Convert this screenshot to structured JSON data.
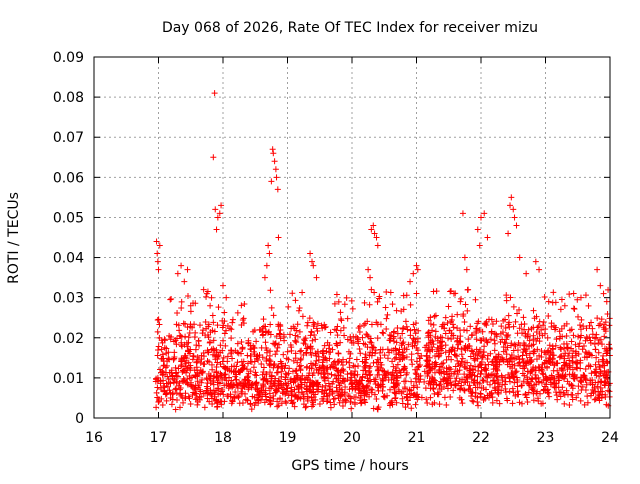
{
  "chart_data": {
    "type": "scatter",
    "title": "Day 068 of 2026, Rate Of TEC Index for receiver mizu",
    "xlabel": "GPS time / hours",
    "ylabel": "ROTI / TECUs",
    "xlim": [
      16,
      24
    ],
    "ylim": [
      0,
      0.09
    ],
    "x_ticks": [
      16,
      17,
      18,
      19,
      20,
      21,
      22,
      23,
      24
    ],
    "y_ticks": [
      0,
      0.01,
      0.02,
      0.03,
      0.04,
      0.05,
      0.06,
      0.07,
      0.08,
      0.09
    ],
    "x_tick_labels": [
      "16",
      "17",
      "18",
      "19",
      "20",
      "21",
      "22",
      "23",
      "24"
    ],
    "y_tick_labels": [
      "0",
      "0.01",
      "0.02",
      "0.03",
      "0.04",
      "0.05",
      "0.06",
      "0.07",
      "0.08",
      "0.09"
    ],
    "grid": true,
    "marker": "+",
    "marker_color": "#ff0000",
    "data_range_hours": [
      16.95,
      24.0
    ],
    "series": [
      {
        "name": "ROTI",
        "points": [
          [
            16.97,
            0.044
          ],
          [
            16.98,
            0.041
          ],
          [
            17.0,
            0.037
          ],
          [
            17.02,
            0.043
          ],
          [
            16.99,
            0.039
          ],
          [
            17.3,
            0.036
          ],
          [
            17.35,
            0.038
          ],
          [
            17.4,
            0.034
          ],
          [
            17.45,
            0.037
          ],
          [
            17.5,
            0.028
          ],
          [
            17.7,
            0.032
          ],
          [
            17.75,
            0.031
          ],
          [
            17.8,
            0.028
          ],
          [
            17.85,
            0.065
          ],
          [
            17.87,
            0.081
          ],
          [
            17.88,
            0.052
          ],
          [
            17.9,
            0.047
          ],
          [
            17.92,
            0.05
          ],
          [
            17.95,
            0.051
          ],
          [
            17.97,
            0.053
          ],
          [
            18.0,
            0.033
          ],
          [
            18.05,
            0.03
          ],
          [
            18.7,
            0.043
          ],
          [
            18.72,
            0.041
          ],
          [
            18.75,
            0.059
          ],
          [
            18.77,
            0.067
          ],
          [
            18.78,
            0.066
          ],
          [
            18.8,
            0.064
          ],
          [
            18.82,
            0.062
          ],
          [
            18.83,
            0.06
          ],
          [
            18.85,
            0.057
          ],
          [
            18.86,
            0.045
          ],
          [
            18.65,
            0.035
          ],
          [
            18.68,
            0.038
          ],
          [
            19.35,
            0.041
          ],
          [
            19.4,
            0.038
          ],
          [
            19.45,
            0.035
          ],
          [
            19.38,
            0.039
          ],
          [
            20.3,
            0.047
          ],
          [
            20.33,
            0.048
          ],
          [
            20.35,
            0.046
          ],
          [
            20.38,
            0.045
          ],
          [
            20.4,
            0.043
          ],
          [
            20.25,
            0.037
          ],
          [
            20.28,
            0.035
          ],
          [
            20.3,
            0.032
          ],
          [
            20.9,
            0.034
          ],
          [
            20.95,
            0.036
          ],
          [
            21.0,
            0.038
          ],
          [
            21.02,
            0.037
          ],
          [
            21.72,
            0.051
          ],
          [
            21.75,
            0.04
          ],
          [
            21.78,
            0.037
          ],
          [
            21.8,
            0.032
          ],
          [
            21.68,
            0.029
          ],
          [
            21.95,
            0.047
          ],
          [
            22.0,
            0.05
          ],
          [
            22.05,
            0.051
          ],
          [
            22.1,
            0.045
          ],
          [
            21.98,
            0.043
          ],
          [
            22.45,
            0.053
          ],
          [
            22.47,
            0.055
          ],
          [
            22.5,
            0.052
          ],
          [
            22.52,
            0.05
          ],
          [
            22.55,
            0.048
          ],
          [
            22.42,
            0.046
          ],
          [
            22.6,
            0.04
          ],
          [
            22.7,
            0.036
          ],
          [
            22.85,
            0.039
          ],
          [
            22.9,
            0.037
          ],
          [
            23.05,
            0.029
          ],
          [
            23.3,
            0.028
          ],
          [
            23.55,
            0.03
          ],
          [
            23.8,
            0.037
          ],
          [
            23.85,
            0.033
          ],
          [
            23.9,
            0.031
          ],
          [
            23.95,
            0.029
          ]
        ]
      }
    ]
  }
}
